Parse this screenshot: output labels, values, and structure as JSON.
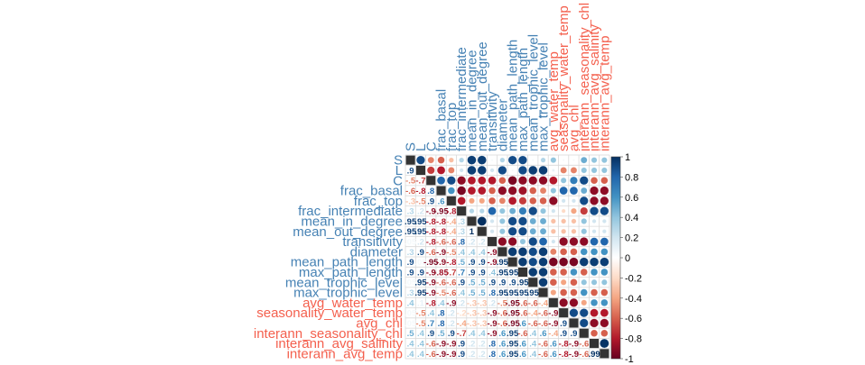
{
  "chart_data": {
    "type": "heatmap",
    "variables": [
      "S",
      "L",
      "C",
      "frac_basal",
      "frac_top",
      "frac_intermediate",
      "mean_in_degree",
      "mean_out_degree",
      "transitivity",
      "diameter",
      "mean_path_length",
      "max_path_length",
      "mean_trophic_level",
      "max_trophic_level",
      "avg_water_temp",
      "seasonality_water_temp",
      "avg_chl",
      "interann_seasonality_chl",
      "interann_avg_salinity",
      "interann_avg_temp"
    ],
    "group_colors": {
      "network": "#4682B4",
      "environment": "#F4604E"
    },
    "variable_groups": [
      "network",
      "network",
      "network",
      "network",
      "network",
      "network",
      "network",
      "network",
      "network",
      "network",
      "network",
      "network",
      "network",
      "network",
      "environment",
      "environment",
      "environment",
      "environment",
      "environment",
      "environment"
    ],
    "layout": "mixed: numbers in lower triangle, circles in upper triangle",
    "matrix": [
      [
        1.0,
        0.9,
        -0.5,
        -0.6,
        -0.3,
        0.3,
        0.95,
        0.95,
        0.05,
        0.3,
        0.9,
        0.9,
        0.05,
        0.3,
        0.4,
        0.05,
        0.05,
        0.5,
        0.4,
        0.4
      ],
      [
        0.9,
        1.0,
        -0.7,
        -0.8,
        -0.5,
        0.2,
        0.95,
        0.95,
        0.2,
        0.9,
        0.05,
        0.9,
        0.95,
        0.95,
        0.1,
        -0.5,
        -0.5,
        0.4,
        0.4,
        0.4
      ],
      [
        -0.5,
        -0.7,
        1.0,
        0.8,
        0.9,
        -0.9,
        -0.8,
        -0.8,
        -0.8,
        -0.6,
        -0.95,
        -0.9,
        -0.9,
        -0.9,
        -0.8,
        0.4,
        0.7,
        0.9,
        -0.6,
        -0.6
      ],
      [
        -0.6,
        -0.8,
        0.8,
        1.0,
        0.6,
        -0.95,
        -0.8,
        -0.8,
        -0.6,
        -0.9,
        -0.9,
        -0.85,
        -0.6,
        -0.5,
        0.4,
        0.8,
        0.8,
        0.5,
        -0.9,
        -0.9
      ],
      [
        -0.3,
        -0.5,
        0.9,
        0.6,
        1.0,
        -0.8,
        -0.4,
        -0.4,
        -0.6,
        -0.5,
        -0.8,
        -0.7,
        -0.6,
        -0.6,
        -0.9,
        0.2,
        0.2,
        0.9,
        -0.9,
        -0.9
      ],
      [
        0.3,
        0.2,
        -0.9,
        -0.95,
        -0.8,
        1.0,
        0.3,
        0.3,
        0.8,
        0.4,
        0.5,
        0.7,
        0.9,
        0.4,
        0.2,
        -0.2,
        -0.4,
        -0.7,
        0.9,
        0.9
      ],
      [
        0.95,
        0.95,
        -0.8,
        -0.8,
        -0.4,
        0.3,
        1.0,
        1.0,
        0.2,
        0.4,
        0.9,
        0.9,
        0.5,
        0.5,
        -0.3,
        -0.3,
        -0.3,
        0.4,
        0.2,
        0.2
      ],
      [
        0.95,
        0.95,
        -0.8,
        -0.8,
        -0.4,
        0.3,
        1.0,
        1.0,
        0.2,
        0.4,
        0.9,
        0.9,
        0.5,
        0.5,
        -0.3,
        -0.3,
        -0.3,
        0.4,
        0.2,
        0.2
      ],
      [
        0.05,
        0.2,
        -0.8,
        -0.6,
        -0.6,
        0.8,
        0.2,
        0.2,
        1.0,
        -0.9,
        -0.9,
        0.4,
        0.9,
        0.8,
        0.2,
        -0.9,
        -0.9,
        -0.9,
        0.8,
        0.8
      ],
      [
        0.3,
        0.9,
        -0.6,
        -0.9,
        -0.5,
        0.4,
        0.4,
        0.4,
        -0.9,
        1.0,
        0.95,
        0.95,
        0.9,
        0.95,
        -0.5,
        -0.6,
        -0.6,
        0.6,
        0.6,
        0.6
      ],
      [
        0.9,
        0.05,
        -0.95,
        -0.9,
        -0.8,
        0.5,
        0.9,
        0.9,
        -0.9,
        0.95,
        1.0,
        0.95,
        0.9,
        0.95,
        -0.95,
        -0.95,
        -0.95,
        0.95,
        0.95,
        0.95
      ],
      [
        0.9,
        0.9,
        -0.9,
        -0.85,
        -0.7,
        0.7,
        0.9,
        0.9,
        0.4,
        0.95,
        0.95,
        1.0,
        0.95,
        0.95,
        -0.6,
        -0.6,
        0.6,
        -0.6,
        0.6,
        0.6
      ],
      [
        0.05,
        0.95,
        -0.9,
        -0.6,
        -0.6,
        0.9,
        0.5,
        0.5,
        0.9,
        0.9,
        0.9,
        0.95,
        1.0,
        0.95,
        -0.6,
        -0.4,
        -0.6,
        0.4,
        0.4,
        0.4
      ],
      [
        0.3,
        0.95,
        -0.9,
        -0.5,
        -0.6,
        0.4,
        0.5,
        0.5,
        0.8,
        0.95,
        0.95,
        0.95,
        0.95,
        1.0,
        -0.4,
        -0.6,
        -0.6,
        0.6,
        -0.6,
        -0.6
      ],
      [
        0.4,
        0.1,
        -0.8,
        0.4,
        -0.9,
        0.2,
        -0.3,
        -0.3,
        0.2,
        -0.5,
        -0.95,
        -0.6,
        -0.6,
        -0.4,
        1.0,
        -0.9,
        -0.9,
        -0.4,
        0.6,
        0.6
      ],
      [
        0.05,
        -0.5,
        0.4,
        0.8,
        0.2,
        -0.2,
        -0.3,
        -0.3,
        -0.9,
        -0.6,
        -0.95,
        -0.6,
        -0.4,
        -0.6,
        -0.9,
        1.0,
        0.9,
        0.9,
        -0.8,
        -0.8
      ],
      [
        0.05,
        -0.5,
        0.7,
        0.8,
        0.2,
        -0.4,
        -0.3,
        -0.3,
        -0.9,
        -0.6,
        -0.95,
        0.6,
        -0.6,
        -0.6,
        -0.9,
        0.9,
        1.0,
        0.9,
        -0.9,
        -0.9
      ],
      [
        0.5,
        0.4,
        0.9,
        0.5,
        0.9,
        -0.7,
        0.4,
        0.4,
        -0.9,
        0.6,
        0.95,
        -0.6,
        0.4,
        0.6,
        -0.4,
        0.9,
        0.9,
        1.0,
        -0.6,
        -0.6
      ],
      [
        0.4,
        0.4,
        -0.6,
        -0.9,
        -0.9,
        0.9,
        0.2,
        0.2,
        0.8,
        0.6,
        0.95,
        0.6,
        0.4,
        -0.6,
        0.6,
        -0.8,
        -0.9,
        -0.6,
        1.0,
        0.99
      ],
      [
        0.4,
        0.4,
        -0.6,
        -0.9,
        -0.9,
        0.9,
        0.2,
        0.2,
        0.8,
        0.6,
        0.95,
        0.6,
        0.4,
        -0.6,
        0.6,
        -0.8,
        -0.9,
        -0.6,
        0.99,
        1.0
      ]
    ],
    "colorbar": {
      "range": [
        -1,
        1
      ],
      "ticks": [
        "-1",
        "-0.8",
        "-0.6",
        "-0.4",
        "-0.2",
        "0",
        "0.2",
        "0.4",
        "0.6",
        "0.8",
        "1"
      ],
      "colors": [
        "#67001F",
        "#B2182B",
        "#D6604D",
        "#F4A582",
        "#FDDBC7",
        "#FFFFFF",
        "#D1E5F0",
        "#92C5DE",
        "#4393C3",
        "#2166AC",
        "#053061"
      ]
    },
    "diagonal_color": "#333333",
    "grid": true,
    "legend": "right"
  }
}
